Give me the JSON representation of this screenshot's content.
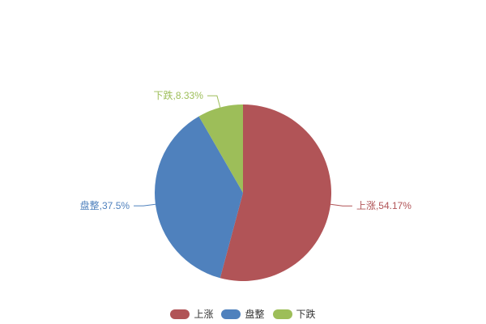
{
  "chart_data": {
    "type": "pie",
    "title": "",
    "legend_position": "bottom",
    "start_angle": "top",
    "direction": "clockwise",
    "total": 100,
    "slices": [
      {
        "key": "rise",
        "name": "上涨",
        "value": 54.17,
        "label": "上涨,54.17%",
        "color": "#b15457"
      },
      {
        "key": "flat",
        "name": "盘整",
        "value": 37.5,
        "label": "盘整,37.5%",
        "color": "#4f81bd"
      },
      {
        "key": "fall",
        "name": "下跌",
        "value": 8.33,
        "label": "下跌,8.33%",
        "color": "#9dbe59"
      }
    ]
  },
  "legend": {
    "items": [
      {
        "key": "rise",
        "label": "上涨",
        "color": "#b15457"
      },
      {
        "key": "flat",
        "label": "盘整",
        "color": "#4f81bd"
      },
      {
        "key": "fall",
        "label": "下跌",
        "color": "#9dbe59"
      }
    ]
  }
}
